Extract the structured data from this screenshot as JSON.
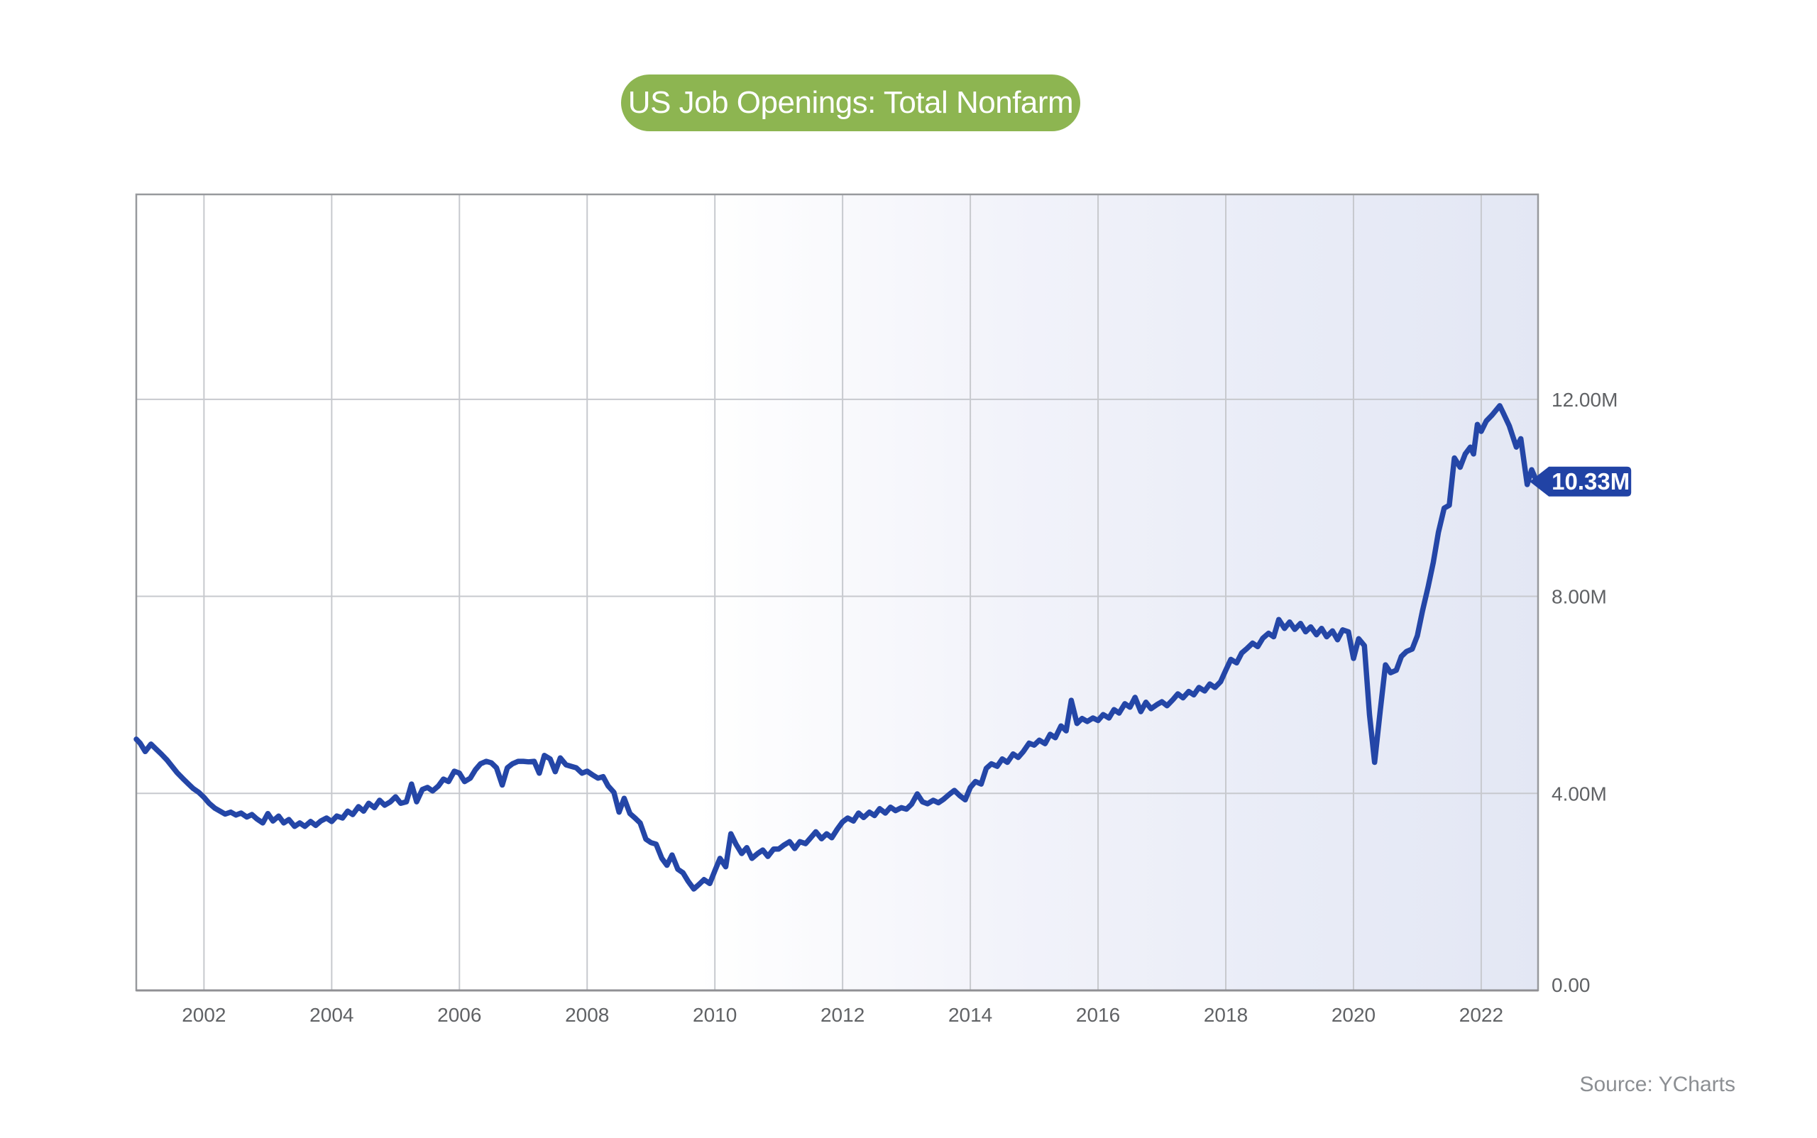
{
  "header": {
    "title": "US Job Openings: Total Nonfarm",
    "pill_color": "#8db551",
    "title_text_color": "#ffffff"
  },
  "footer": {
    "source_label": "Source: YCharts"
  },
  "last_value_badge": {
    "label": "10.33M",
    "color": "#2143a5",
    "text_color": "#ffffff"
  },
  "chart_data": {
    "type": "line",
    "title": "US Job Openings: Total Nonfarm",
    "xlabel": "",
    "ylabel": "",
    "x_axis": {
      "range": [
        2000.94,
        2022.89
      ],
      "tick_labels": [
        "2002",
        "2004",
        "2006",
        "2008",
        "2010",
        "2012",
        "2014",
        "2016",
        "2018",
        "2020",
        "2022"
      ],
      "tick_values": [
        2002,
        2004,
        2006,
        2008,
        2010,
        2012,
        2014,
        2016,
        2018,
        2020,
        2022
      ],
      "grid": true
    },
    "y_axis": {
      "range": [
        0,
        16.16
      ],
      "unit": "millions",
      "ticks": [
        {
          "value": 12,
          "label": "12.00M"
        },
        {
          "value": 8,
          "label": "8.00M"
        },
        {
          "value": 4,
          "label": "4.00M"
        },
        {
          "value": 0,
          "label": "0.00"
        }
      ],
      "grid": true,
      "labels_position": "right"
    },
    "colors": {
      "line": "#2446a7",
      "grid": "#c7c9ce",
      "border": "#97999d",
      "axis_bottom": "#909094",
      "tick_text": "#606265",
      "plot_gradient_left": "#ffffff",
      "plot_gradient_right": "#e3e7f4"
    },
    "legend": {
      "visible": false
    },
    "series": [
      {
        "name": "US Job Openings: Total Nonfarm",
        "color": "#2446a7",
        "last_value_label": "10.33M",
        "points": [
          [
            2000.94,
            5.1
          ],
          [
            2001.0,
            5.02
          ],
          [
            2001.08,
            4.85
          ],
          [
            2001.17,
            5.0
          ],
          [
            2001.25,
            4.9
          ],
          [
            2001.33,
            4.8
          ],
          [
            2001.42,
            4.68
          ],
          [
            2001.5,
            4.55
          ],
          [
            2001.58,
            4.42
          ],
          [
            2001.67,
            4.3
          ],
          [
            2001.75,
            4.2
          ],
          [
            2001.83,
            4.1
          ],
          [
            2001.92,
            4.02
          ],
          [
            2002.0,
            3.92
          ],
          [
            2002.08,
            3.8
          ],
          [
            2002.17,
            3.7
          ],
          [
            2002.25,
            3.64
          ],
          [
            2002.33,
            3.58
          ],
          [
            2002.42,
            3.62
          ],
          [
            2002.5,
            3.56
          ],
          [
            2002.58,
            3.6
          ],
          [
            2002.67,
            3.52
          ],
          [
            2002.75,
            3.57
          ],
          [
            2002.83,
            3.48
          ],
          [
            2002.92,
            3.4
          ],
          [
            2003.0,
            3.59
          ],
          [
            2003.08,
            3.44
          ],
          [
            2003.17,
            3.54
          ],
          [
            2003.25,
            3.4
          ],
          [
            2003.33,
            3.47
          ],
          [
            2003.42,
            3.33
          ],
          [
            2003.5,
            3.4
          ],
          [
            2003.58,
            3.33
          ],
          [
            2003.67,
            3.43
          ],
          [
            2003.75,
            3.35
          ],
          [
            2003.83,
            3.44
          ],
          [
            2003.92,
            3.5
          ],
          [
            2004.0,
            3.43
          ],
          [
            2004.08,
            3.54
          ],
          [
            2004.17,
            3.5
          ],
          [
            2004.25,
            3.64
          ],
          [
            2004.33,
            3.57
          ],
          [
            2004.42,
            3.73
          ],
          [
            2004.5,
            3.64
          ],
          [
            2004.58,
            3.8
          ],
          [
            2004.67,
            3.71
          ],
          [
            2004.75,
            3.86
          ],
          [
            2004.83,
            3.76
          ],
          [
            2004.92,
            3.83
          ],
          [
            2005.0,
            3.93
          ],
          [
            2005.08,
            3.8
          ],
          [
            2005.17,
            3.83
          ],
          [
            2005.25,
            4.19
          ],
          [
            2005.33,
            3.83
          ],
          [
            2005.42,
            4.08
          ],
          [
            2005.5,
            4.12
          ],
          [
            2005.58,
            4.05
          ],
          [
            2005.67,
            4.15
          ],
          [
            2005.75,
            4.29
          ],
          [
            2005.83,
            4.24
          ],
          [
            2005.92,
            4.45
          ],
          [
            2006.0,
            4.41
          ],
          [
            2006.08,
            4.24
          ],
          [
            2006.17,
            4.31
          ],
          [
            2006.25,
            4.48
          ],
          [
            2006.33,
            4.6
          ],
          [
            2006.42,
            4.65
          ],
          [
            2006.5,
            4.62
          ],
          [
            2006.58,
            4.52
          ],
          [
            2006.67,
            4.17
          ],
          [
            2006.75,
            4.52
          ],
          [
            2006.83,
            4.6
          ],
          [
            2006.92,
            4.65
          ],
          [
            2007.0,
            4.65
          ],
          [
            2007.08,
            4.64
          ],
          [
            2007.17,
            4.65
          ],
          [
            2007.25,
            4.41
          ],
          [
            2007.33,
            4.77
          ],
          [
            2007.42,
            4.7
          ],
          [
            2007.5,
            4.44
          ],
          [
            2007.58,
            4.72
          ],
          [
            2007.67,
            4.58
          ],
          [
            2007.75,
            4.55
          ],
          [
            2007.83,
            4.52
          ],
          [
            2007.92,
            4.41
          ],
          [
            2008.0,
            4.45
          ],
          [
            2008.08,
            4.38
          ],
          [
            2008.17,
            4.31
          ],
          [
            2008.25,
            4.34
          ],
          [
            2008.33,
            4.15
          ],
          [
            2008.42,
            4.02
          ],
          [
            2008.5,
            3.62
          ],
          [
            2008.58,
            3.9
          ],
          [
            2008.67,
            3.59
          ],
          [
            2008.75,
            3.5
          ],
          [
            2008.83,
            3.4
          ],
          [
            2008.92,
            3.07
          ],
          [
            2009.0,
            3.0
          ],
          [
            2009.08,
            2.97
          ],
          [
            2009.17,
            2.68
          ],
          [
            2009.25,
            2.54
          ],
          [
            2009.33,
            2.75
          ],
          [
            2009.42,
            2.46
          ],
          [
            2009.5,
            2.39
          ],
          [
            2009.58,
            2.22
          ],
          [
            2009.67,
            2.06
          ],
          [
            2009.75,
            2.15
          ],
          [
            2009.83,
            2.25
          ],
          [
            2009.92,
            2.17
          ],
          [
            2010.0,
            2.43
          ],
          [
            2010.08,
            2.68
          ],
          [
            2010.17,
            2.51
          ],
          [
            2010.25,
            3.18
          ],
          [
            2010.33,
            2.97
          ],
          [
            2010.42,
            2.78
          ],
          [
            2010.5,
            2.9
          ],
          [
            2010.58,
            2.68
          ],
          [
            2010.67,
            2.78
          ],
          [
            2010.75,
            2.85
          ],
          [
            2010.83,
            2.72
          ],
          [
            2010.92,
            2.87
          ],
          [
            2011.0,
            2.87
          ],
          [
            2011.08,
            2.95
          ],
          [
            2011.17,
            3.02
          ],
          [
            2011.25,
            2.88
          ],
          [
            2011.33,
            3.02
          ],
          [
            2011.42,
            2.98
          ],
          [
            2011.5,
            3.1
          ],
          [
            2011.58,
            3.22
          ],
          [
            2011.67,
            3.08
          ],
          [
            2011.75,
            3.18
          ],
          [
            2011.83,
            3.1
          ],
          [
            2011.92,
            3.28
          ],
          [
            2012.0,
            3.42
          ],
          [
            2012.08,
            3.5
          ],
          [
            2012.17,
            3.44
          ],
          [
            2012.25,
            3.6
          ],
          [
            2012.33,
            3.51
          ],
          [
            2012.42,
            3.62
          ],
          [
            2012.5,
            3.55
          ],
          [
            2012.58,
            3.69
          ],
          [
            2012.67,
            3.6
          ],
          [
            2012.75,
            3.72
          ],
          [
            2012.83,
            3.65
          ],
          [
            2012.92,
            3.71
          ],
          [
            2013.0,
            3.68
          ],
          [
            2013.08,
            3.78
          ],
          [
            2013.17,
            3.99
          ],
          [
            2013.25,
            3.83
          ],
          [
            2013.33,
            3.79
          ],
          [
            2013.42,
            3.86
          ],
          [
            2013.5,
            3.81
          ],
          [
            2013.58,
            3.88
          ],
          [
            2013.67,
            3.98
          ],
          [
            2013.75,
            4.06
          ],
          [
            2013.83,
            3.96
          ],
          [
            2013.92,
            3.87
          ],
          [
            2014.0,
            4.12
          ],
          [
            2014.08,
            4.24
          ],
          [
            2014.17,
            4.19
          ],
          [
            2014.25,
            4.51
          ],
          [
            2014.33,
            4.6
          ],
          [
            2014.42,
            4.55
          ],
          [
            2014.5,
            4.7
          ],
          [
            2014.58,
            4.63
          ],
          [
            2014.67,
            4.8
          ],
          [
            2014.75,
            4.73
          ],
          [
            2014.83,
            4.85
          ],
          [
            2014.92,
            5.02
          ],
          [
            2015.0,
            4.98
          ],
          [
            2015.08,
            5.08
          ],
          [
            2015.17,
            5.01
          ],
          [
            2015.25,
            5.2
          ],
          [
            2015.33,
            5.13
          ],
          [
            2015.42,
            5.37
          ],
          [
            2015.5,
            5.27
          ],
          [
            2015.58,
            5.89
          ],
          [
            2015.67,
            5.42
          ],
          [
            2015.75,
            5.52
          ],
          [
            2015.83,
            5.46
          ],
          [
            2015.92,
            5.53
          ],
          [
            2016.0,
            5.48
          ],
          [
            2016.08,
            5.6
          ],
          [
            2016.17,
            5.53
          ],
          [
            2016.25,
            5.7
          ],
          [
            2016.33,
            5.63
          ],
          [
            2016.42,
            5.82
          ],
          [
            2016.5,
            5.75
          ],
          [
            2016.58,
            5.95
          ],
          [
            2016.67,
            5.66
          ],
          [
            2016.75,
            5.85
          ],
          [
            2016.83,
            5.72
          ],
          [
            2016.92,
            5.8
          ],
          [
            2017.0,
            5.86
          ],
          [
            2017.08,
            5.78
          ],
          [
            2017.17,
            5.9
          ],
          [
            2017.25,
            6.02
          ],
          [
            2017.33,
            5.94
          ],
          [
            2017.42,
            6.07
          ],
          [
            2017.5,
            6.0
          ],
          [
            2017.58,
            6.15
          ],
          [
            2017.67,
            6.08
          ],
          [
            2017.75,
            6.22
          ],
          [
            2017.83,
            6.15
          ],
          [
            2017.92,
            6.27
          ],
          [
            2018.0,
            6.5
          ],
          [
            2018.08,
            6.72
          ],
          [
            2018.17,
            6.65
          ],
          [
            2018.25,
            6.85
          ],
          [
            2018.33,
            6.94
          ],
          [
            2018.42,
            7.05
          ],
          [
            2018.5,
            6.98
          ],
          [
            2018.58,
            7.15
          ],
          [
            2018.67,
            7.25
          ],
          [
            2018.75,
            7.18
          ],
          [
            2018.83,
            7.53
          ],
          [
            2018.92,
            7.35
          ],
          [
            2019.0,
            7.48
          ],
          [
            2019.08,
            7.33
          ],
          [
            2019.17,
            7.45
          ],
          [
            2019.25,
            7.28
          ],
          [
            2019.33,
            7.38
          ],
          [
            2019.42,
            7.22
          ],
          [
            2019.5,
            7.35
          ],
          [
            2019.58,
            7.18
          ],
          [
            2019.67,
            7.3
          ],
          [
            2019.75,
            7.12
          ],
          [
            2019.83,
            7.32
          ],
          [
            2019.92,
            7.28
          ],
          [
            2020.0,
            6.74
          ],
          [
            2020.08,
            7.14
          ],
          [
            2020.17,
            7.0
          ],
          [
            2020.25,
            5.6
          ],
          [
            2020.33,
            4.63
          ],
          [
            2020.42,
            5.7
          ],
          [
            2020.5,
            6.61
          ],
          [
            2020.58,
            6.45
          ],
          [
            2020.67,
            6.5
          ],
          [
            2020.75,
            6.78
          ],
          [
            2020.83,
            6.88
          ],
          [
            2020.92,
            6.93
          ],
          [
            2021.0,
            7.2
          ],
          [
            2021.08,
            7.7
          ],
          [
            2021.17,
            8.2
          ],
          [
            2021.25,
            8.69
          ],
          [
            2021.33,
            9.3
          ],
          [
            2021.42,
            9.79
          ],
          [
            2021.5,
            9.85
          ],
          [
            2021.58,
            10.81
          ],
          [
            2021.67,
            10.62
          ],
          [
            2021.75,
            10.89
          ],
          [
            2021.83,
            11.03
          ],
          [
            2021.88,
            10.89
          ],
          [
            2021.94,
            11.49
          ],
          [
            2022.0,
            11.35
          ],
          [
            2022.08,
            11.56
          ],
          [
            2022.17,
            11.68
          ],
          [
            2022.29,
            11.87
          ],
          [
            2022.35,
            11.71
          ],
          [
            2022.44,
            11.46
          ],
          [
            2022.55,
            11.03
          ],
          [
            2022.62,
            11.2
          ],
          [
            2022.72,
            10.27
          ],
          [
            2022.79,
            10.57
          ],
          [
            2022.87,
            10.33
          ]
        ]
      }
    ]
  }
}
